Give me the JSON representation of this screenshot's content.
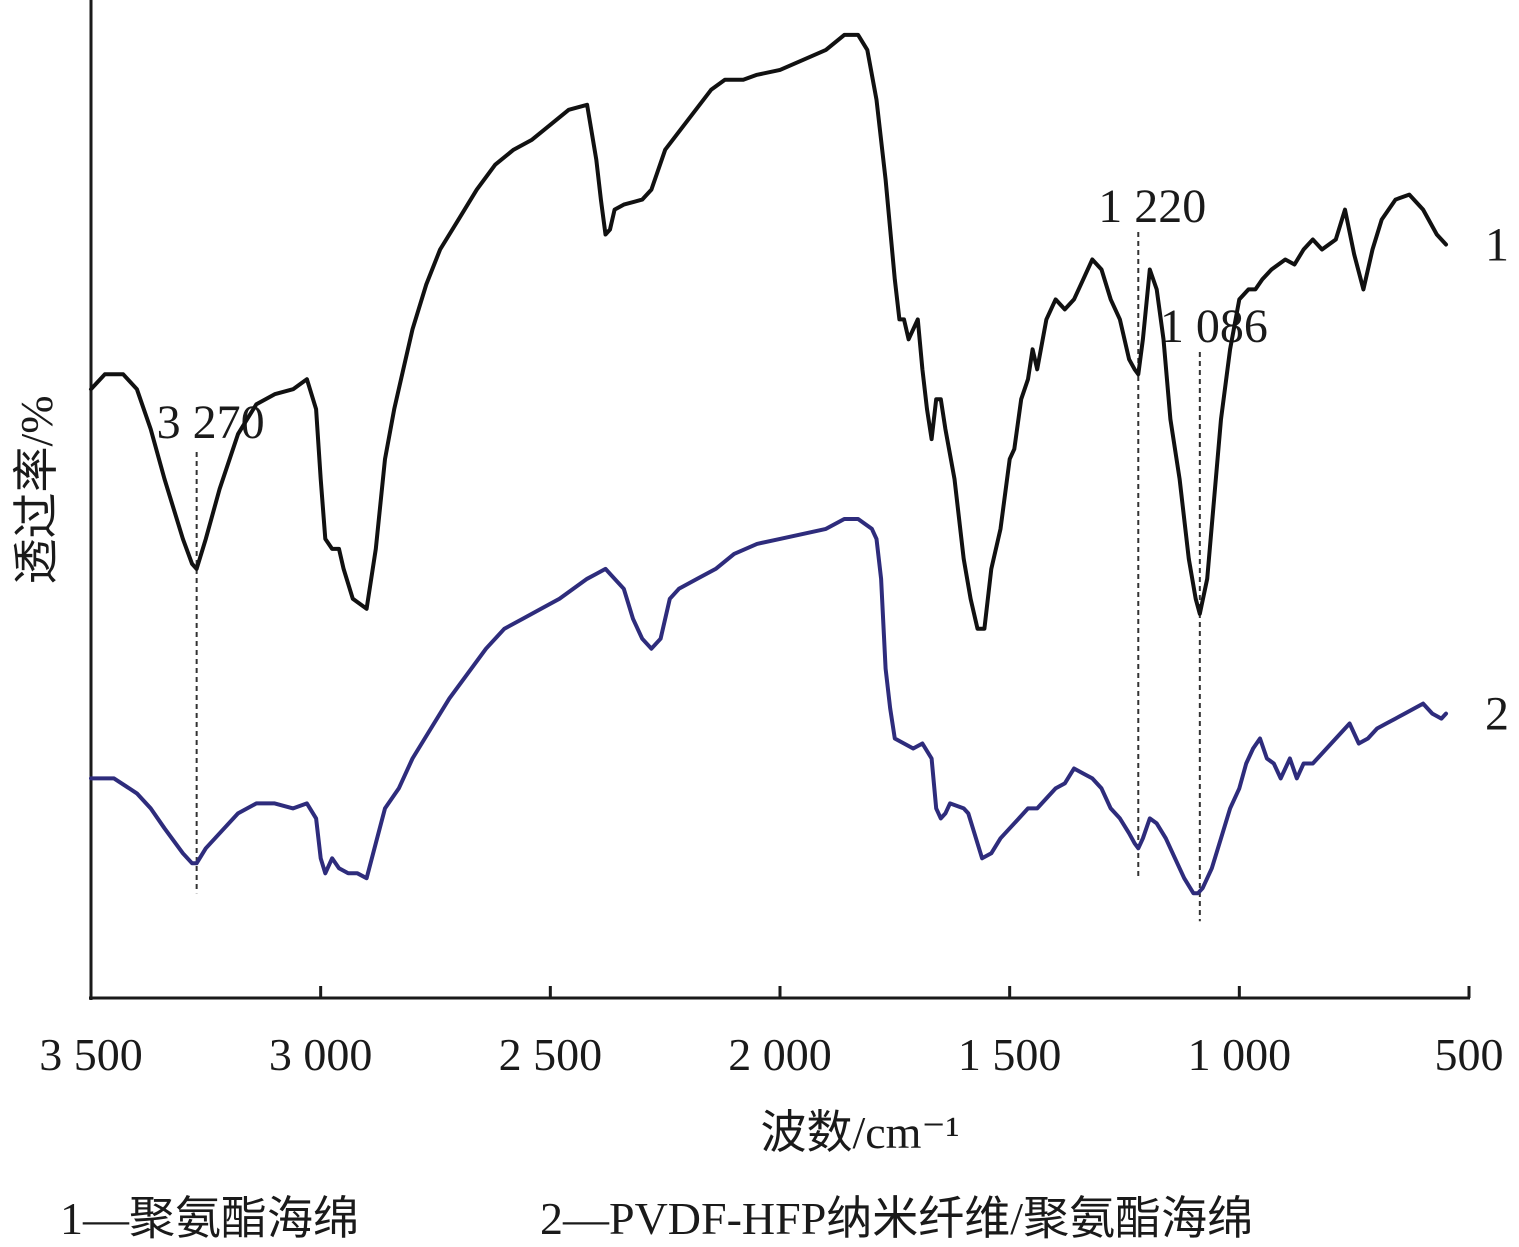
{
  "chart_data": {
    "type": "line",
    "xlabel": "波数/cm⁻¹",
    "ylabel": "透过率/%",
    "xlim": [
      3500,
      500
    ],
    "x_reversed": true,
    "ylim": [
      0,
      100
    ],
    "y_ticks_shown": false,
    "grid": false,
    "x_ticks": [
      {
        "value": 3500,
        "label": "3 500"
      },
      {
        "value": 3000,
        "label": "3 000"
      },
      {
        "value": 2500,
        "label": "2 500"
      },
      {
        "value": 2000,
        "label": "2 000"
      },
      {
        "value": 1500,
        "label": "1 500"
      },
      {
        "value": 1000,
        "label": "1 000"
      },
      {
        "value": 500,
        "label": "500"
      }
    ],
    "annotations": [
      {
        "x": 3270,
        "label": "3 270"
      },
      {
        "x": 1220,
        "label": "1 220"
      },
      {
        "x": 1086,
        "label": "1 086"
      }
    ],
    "legend": {
      "placement": "bottom",
      "entries": [
        {
          "label": "1—聚氨酯海绵"
        },
        {
          "label": "2—PVDF-HFP纳米纤维/聚氨酯海绵"
        }
      ]
    },
    "series": [
      {
        "label": "1",
        "color": "#111111",
        "points": [
          [
            3500,
            61
          ],
          [
            3470,
            62.5
          ],
          [
            3430,
            62.5
          ],
          [
            3400,
            61
          ],
          [
            3370,
            57
          ],
          [
            3340,
            52
          ],
          [
            3300,
            46
          ],
          [
            3280,
            43.5
          ],
          [
            3270,
            43
          ],
          [
            3250,
            46
          ],
          [
            3220,
            51
          ],
          [
            3180,
            56.5
          ],
          [
            3140,
            59.5
          ],
          [
            3100,
            60.5
          ],
          [
            3060,
            61
          ],
          [
            3030,
            62
          ],
          [
            3010,
            59
          ],
          [
            3000,
            52
          ],
          [
            2990,
            46
          ],
          [
            2975,
            45
          ],
          [
            2960,
            45
          ],
          [
            2950,
            43
          ],
          [
            2930,
            40
          ],
          [
            2915,
            39.5
          ],
          [
            2900,
            39
          ],
          [
            2880,
            45
          ],
          [
            2860,
            54
          ],
          [
            2840,
            59
          ],
          [
            2820,
            63
          ],
          [
            2800,
            67
          ],
          [
            2770,
            71.5
          ],
          [
            2740,
            75
          ],
          [
            2700,
            78
          ],
          [
            2660,
            81
          ],
          [
            2620,
            83.5
          ],
          [
            2580,
            85
          ],
          [
            2540,
            86
          ],
          [
            2500,
            87.5
          ],
          [
            2460,
            89
          ],
          [
            2420,
            89.5
          ],
          [
            2400,
            84
          ],
          [
            2390,
            80
          ],
          [
            2380,
            76.5
          ],
          [
            2370,
            77
          ],
          [
            2360,
            79
          ],
          [
            2340,
            79.5
          ],
          [
            2300,
            80
          ],
          [
            2280,
            81
          ],
          [
            2250,
            85
          ],
          [
            2200,
            88
          ],
          [
            2150,
            91
          ],
          [
            2120,
            92
          ],
          [
            2080,
            92
          ],
          [
            2050,
            92.5
          ],
          [
            2000,
            93
          ],
          [
            1950,
            94
          ],
          [
            1900,
            95
          ],
          [
            1860,
            96.5
          ],
          [
            1830,
            96.5
          ],
          [
            1810,
            95
          ],
          [
            1790,
            90
          ],
          [
            1770,
            82
          ],
          [
            1750,
            72
          ],
          [
            1740,
            68
          ],
          [
            1730,
            68
          ],
          [
            1720,
            66
          ],
          [
            1700,
            68
          ],
          [
            1690,
            63
          ],
          [
            1680,
            59
          ],
          [
            1670,
            56
          ],
          [
            1660,
            60
          ],
          [
            1650,
            60
          ],
          [
            1640,
            57
          ],
          [
            1620,
            52
          ],
          [
            1600,
            44
          ],
          [
            1585,
            40
          ],
          [
            1570,
            37
          ],
          [
            1555,
            37
          ],
          [
            1540,
            43
          ],
          [
            1520,
            47
          ],
          [
            1500,
            54
          ],
          [
            1490,
            55
          ],
          [
            1475,
            60
          ],
          [
            1460,
            62
          ],
          [
            1450,
            65
          ],
          [
            1440,
            63
          ],
          [
            1420,
            68
          ],
          [
            1400,
            70
          ],
          [
            1380,
            69
          ],
          [
            1360,
            70
          ],
          [
            1340,
            72
          ],
          [
            1320,
            74
          ],
          [
            1300,
            73
          ],
          [
            1280,
            70
          ],
          [
            1260,
            68
          ],
          [
            1240,
            64
          ],
          [
            1228,
            63
          ],
          [
            1220,
            62.5
          ],
          [
            1210,
            66
          ],
          [
            1195,
            73
          ],
          [
            1180,
            71
          ],
          [
            1165,
            66
          ],
          [
            1150,
            58
          ],
          [
            1130,
            52
          ],
          [
            1110,
            44
          ],
          [
            1095,
            40
          ],
          [
            1086,
            38.5
          ],
          [
            1070,
            42
          ],
          [
            1055,
            50
          ],
          [
            1040,
            58
          ],
          [
            1020,
            65
          ],
          [
            1000,
            70
          ],
          [
            980,
            71
          ],
          [
            965,
            71
          ],
          [
            950,
            72
          ],
          [
            930,
            73
          ],
          [
            900,
            74
          ],
          [
            880,
            73.5
          ],
          [
            860,
            75
          ],
          [
            840,
            76
          ],
          [
            820,
            75
          ],
          [
            790,
            76
          ],
          [
            770,
            79
          ],
          [
            750,
            74.5
          ],
          [
            730,
            71
          ],
          [
            710,
            75
          ],
          [
            690,
            78
          ],
          [
            660,
            80
          ],
          [
            630,
            80.5
          ],
          [
            600,
            79
          ],
          [
            570,
            76.5
          ],
          [
            550,
            75.5
          ]
        ]
      },
      {
        "label": "2",
        "color": "#2e2c7c",
        "points": [
          [
            3500,
            22
          ],
          [
            3450,
            22
          ],
          [
            3400,
            20.5
          ],
          [
            3370,
            19
          ],
          [
            3340,
            17
          ],
          [
            3300,
            14.5
          ],
          [
            3280,
            13.5
          ],
          [
            3270,
            13.5
          ],
          [
            3250,
            15
          ],
          [
            3220,
            16.5
          ],
          [
            3180,
            18.5
          ],
          [
            3140,
            19.5
          ],
          [
            3100,
            19.5
          ],
          [
            3060,
            19
          ],
          [
            3030,
            19.5
          ],
          [
            3010,
            18
          ],
          [
            3000,
            14
          ],
          [
            2990,
            12.5
          ],
          [
            2975,
            14
          ],
          [
            2960,
            13
          ],
          [
            2940,
            12.5
          ],
          [
            2920,
            12.5
          ],
          [
            2900,
            12
          ],
          [
            2880,
            15.5
          ],
          [
            2860,
            19
          ],
          [
            2830,
            21
          ],
          [
            2800,
            24
          ],
          [
            2760,
            27
          ],
          [
            2720,
            30
          ],
          [
            2680,
            32.5
          ],
          [
            2640,
            35
          ],
          [
            2600,
            37
          ],
          [
            2560,
            38
          ],
          [
            2520,
            39
          ],
          [
            2480,
            40
          ],
          [
            2450,
            41
          ],
          [
            2420,
            42
          ],
          [
            2400,
            42.5
          ],
          [
            2380,
            43
          ],
          [
            2360,
            42
          ],
          [
            2340,
            41
          ],
          [
            2320,
            38
          ],
          [
            2300,
            36
          ],
          [
            2280,
            35
          ],
          [
            2260,
            36
          ],
          [
            2240,
            40
          ],
          [
            2220,
            41
          ],
          [
            2180,
            42
          ],
          [
            2140,
            43
          ],
          [
            2100,
            44.5
          ],
          [
            2050,
            45.5
          ],
          [
            2000,
            46
          ],
          [
            1950,
            46.5
          ],
          [
            1900,
            47
          ],
          [
            1860,
            48
          ],
          [
            1830,
            48
          ],
          [
            1800,
            47
          ],
          [
            1790,
            46
          ],
          [
            1780,
            42
          ],
          [
            1770,
            33
          ],
          [
            1760,
            29
          ],
          [
            1750,
            26
          ],
          [
            1730,
            25.5
          ],
          [
            1710,
            25
          ],
          [
            1690,
            25.5
          ],
          [
            1670,
            24
          ],
          [
            1660,
            19
          ],
          [
            1650,
            18
          ],
          [
            1640,
            18.5
          ],
          [
            1630,
            19.5
          ],
          [
            1600,
            19
          ],
          [
            1590,
            18.5
          ],
          [
            1580,
            17
          ],
          [
            1560,
            14
          ],
          [
            1540,
            14.5
          ],
          [
            1520,
            16
          ],
          [
            1500,
            17
          ],
          [
            1480,
            18
          ],
          [
            1460,
            19
          ],
          [
            1440,
            19
          ],
          [
            1420,
            20
          ],
          [
            1400,
            21
          ],
          [
            1380,
            21.5
          ],
          [
            1360,
            23
          ],
          [
            1340,
            22.5
          ],
          [
            1320,
            22
          ],
          [
            1300,
            21
          ],
          [
            1280,
            19
          ],
          [
            1260,
            18
          ],
          [
            1240,
            16.5
          ],
          [
            1228,
            15.5
          ],
          [
            1220,
            15
          ],
          [
            1210,
            16
          ],
          [
            1195,
            18
          ],
          [
            1180,
            17.5
          ],
          [
            1160,
            16
          ],
          [
            1140,
            14
          ],
          [
            1120,
            12
          ],
          [
            1100,
            10.5
          ],
          [
            1090,
            10.5
          ],
          [
            1080,
            11
          ],
          [
            1060,
            13
          ],
          [
            1040,
            16
          ],
          [
            1020,
            19
          ],
          [
            1000,
            21
          ],
          [
            985,
            23.5
          ],
          [
            970,
            25
          ],
          [
            955,
            26
          ],
          [
            940,
            24
          ],
          [
            925,
            23.5
          ],
          [
            910,
            22
          ],
          [
            890,
            24
          ],
          [
            875,
            22
          ],
          [
            860,
            23.5
          ],
          [
            840,
            23.5
          ],
          [
            820,
            24.5
          ],
          [
            800,
            25.5
          ],
          [
            780,
            26.5
          ],
          [
            760,
            27.5
          ],
          [
            740,
            25.5
          ],
          [
            720,
            26
          ],
          [
            700,
            27
          ],
          [
            680,
            27.5
          ],
          [
            660,
            28
          ],
          [
            640,
            28.5
          ],
          [
            620,
            29
          ],
          [
            600,
            29.5
          ],
          [
            580,
            28.5
          ],
          [
            560,
            28
          ],
          [
            550,
            28.5
          ]
        ]
      }
    ]
  }
}
